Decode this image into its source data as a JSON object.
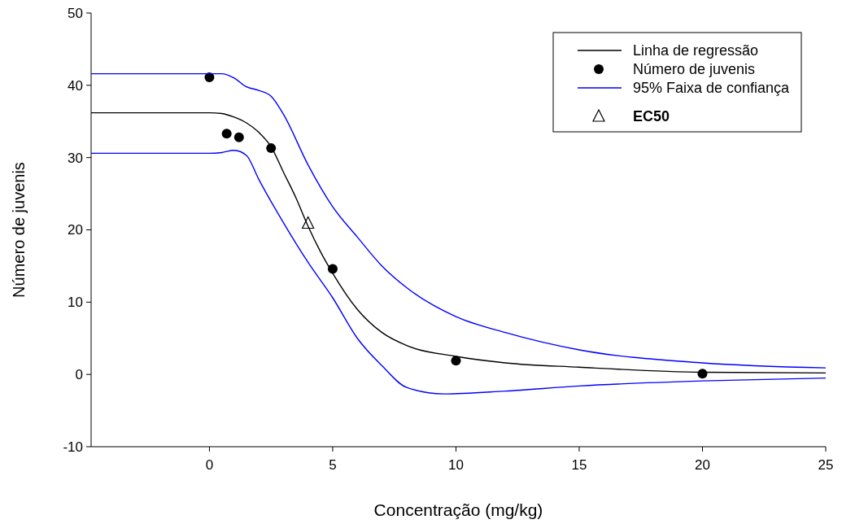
{
  "chart_data": {
    "type": "line",
    "xlabel": "Concentração (mg/kg)",
    "ylabel": "Número de juvenis",
    "xlim": [
      -4.8,
      25
    ],
    "xticks": [
      0,
      5,
      10,
      15,
      20,
      25
    ],
    "ylim": [
      -10,
      50
    ],
    "yticks": [
      -10,
      0,
      10,
      20,
      30,
      40,
      50
    ],
    "grid": false,
    "legend": "top right",
    "series": [
      {
        "name": "Linha de regressão",
        "color": "#000000",
        "marker": "none",
        "x": [
          -4.8,
          0,
          0.5,
          1,
          1.5,
          2,
          2.5,
          3,
          3.5,
          4,
          4.5,
          5,
          6,
          7,
          8,
          10,
          12,
          15,
          20,
          25
        ],
        "values": [
          36.2,
          36.2,
          36.1,
          35.6,
          34.8,
          33.5,
          31.5,
          28,
          24.5,
          20.5,
          17,
          14,
          9,
          5.8,
          4,
          2.5,
          1.6,
          1.0,
          0.3,
          0.2
        ]
      },
      {
        "name": "Número de juvenis",
        "type": "scatter",
        "color": "#000000",
        "marker": "circle",
        "x": [
          0,
          0.7,
          1.2,
          2.5,
          5,
          10,
          20
        ],
        "values": [
          41.1,
          33.3,
          32.8,
          31.3,
          14.6,
          1.9,
          0.1
        ]
      },
      {
        "name": "95% Faixa de confiança",
        "color": "#0000ff",
        "marker": "none",
        "x": [
          -4.8,
          0,
          0.5,
          1,
          1.5,
          2,
          2.5,
          3,
          4,
          5,
          6,
          7,
          8,
          10,
          12,
          15,
          20,
          25
        ],
        "values": [
          41.6,
          41.6,
          41.6,
          41.0,
          39.8,
          39.3,
          38.5,
          36,
          29,
          23.2,
          19,
          15,
          12,
          8,
          5.8,
          3.4,
          1.6,
          0.9
        ]
      },
      {
        "color": "#0000ff",
        "marker": "none",
        "x": [
          -4.8,
          0,
          0.5,
          1,
          1.5,
          2,
          3,
          4,
          5,
          6,
          7,
          8,
          9.5,
          12,
          15,
          20,
          25
        ],
        "values": [
          30.6,
          30.6,
          30.7,
          31.0,
          30.3,
          27,
          21,
          15.5,
          10.6,
          5,
          1.2,
          -1.8,
          -2.7,
          -2.3,
          -1.6,
          -0.9,
          -0.5
        ]
      },
      {
        "name": "EC50",
        "type": "scatter",
        "color": "#000000",
        "marker": "triangle",
        "x": [
          4.0
        ],
        "values": [
          20.9
        ]
      }
    ]
  }
}
